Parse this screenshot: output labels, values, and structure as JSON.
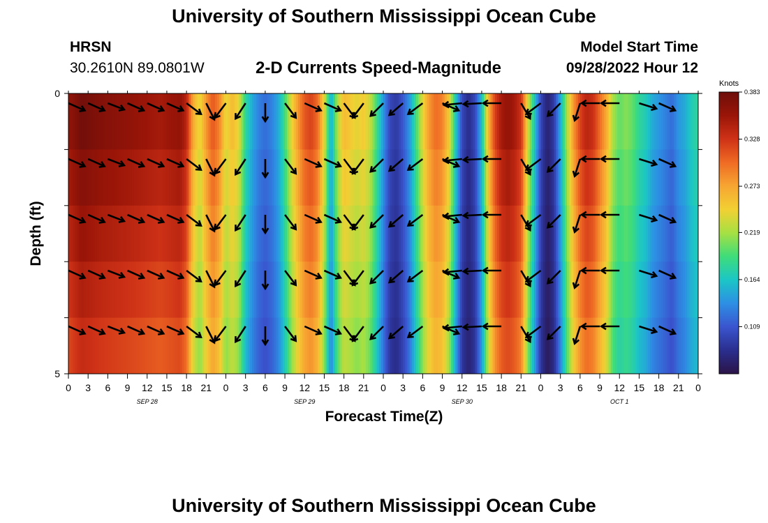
{
  "page": {
    "title": "University of Southern Mississippi Ocean Cube",
    "footer_title": "University of Southern Mississippi Ocean Cube",
    "station_name": "HRSN",
    "station_coords": "30.2610N  89.0801W",
    "plot_title": "2-D Currents Speed-Magnitude",
    "model_start_label": "Model Start Time",
    "model_start_value": "09/28/2022 Hour 12"
  },
  "chart_data": {
    "type": "heatmap",
    "title": "2-D Currents Speed-Magnitude",
    "xlabel": "Forecast Time(Z)",
    "ylabel": "Depth (ft)",
    "x_range_hours": [
      0,
      96
    ],
    "y_range_ft": [
      0,
      5
    ],
    "y_ticks": [
      "0",
      "5"
    ],
    "x_tick_labels": [
      "0",
      "3",
      "6",
      "9",
      "12",
      "15",
      "18",
      "21",
      "0",
      "3",
      "6",
      "9",
      "12",
      "15",
      "18",
      "21",
      "0",
      "3",
      "6",
      "9",
      "12",
      "15",
      "18",
      "21",
      "0",
      "3",
      "6",
      "9",
      "12",
      "15",
      "18",
      "21",
      "0"
    ],
    "date_labels": [
      {
        "label": "SEP 28",
        "hour": 12
      },
      {
        "label": "SEP 29",
        "hour": 36
      },
      {
        "label": "SEP 30",
        "hour": 60
      },
      {
        "label": "OCT 1",
        "hour": 84
      }
    ],
    "colorbar": {
      "unit": "Knots",
      "min": 0.054,
      "max": 0.383,
      "tick_labels": [
        "0.383",
        "0.328",
        "0.273",
        "0.219",
        "0.164",
        "0.109"
      ],
      "tick_values": [
        0.383,
        0.328,
        0.273,
        0.219,
        0.164,
        0.109
      ],
      "colors": [
        "#2b1448",
        "#2a2e8e",
        "#3a55cf",
        "#2d8fe4",
        "#1bc6c6",
        "#3fdc7a",
        "#a6e043",
        "#f2d033",
        "#f7a532",
        "#ef6b24",
        "#cf3217",
        "#9a1508",
        "#6e0e0a"
      ]
    },
    "speed_profile": [
      [
        0,
        0.36
      ],
      [
        2,
        0.38
      ],
      [
        5,
        0.37
      ],
      [
        10,
        0.36
      ],
      [
        14,
        0.35
      ],
      [
        17,
        0.36
      ],
      [
        18,
        0.34
      ],
      [
        19,
        0.27
      ],
      [
        20,
        0.24
      ],
      [
        21,
        0.28
      ],
      [
        22,
        0.31
      ],
      [
        23,
        0.29
      ],
      [
        24,
        0.24
      ],
      [
        25,
        0.26
      ],
      [
        26,
        0.24
      ],
      [
        27,
        0.18
      ],
      [
        28,
        0.15
      ],
      [
        29,
        0.13
      ],
      [
        30,
        0.12
      ],
      [
        31,
        0.13
      ],
      [
        32,
        0.15
      ],
      [
        33,
        0.19
      ],
      [
        34,
        0.24
      ],
      [
        35,
        0.28
      ],
      [
        36,
        0.31
      ],
      [
        37,
        0.32
      ],
      [
        38,
        0.3
      ],
      [
        39,
        0.24
      ],
      [
        40,
        0.15
      ],
      [
        41,
        0.22
      ],
      [
        42,
        0.26
      ],
      [
        43,
        0.25
      ],
      [
        44,
        0.24
      ],
      [
        45,
        0.25
      ],
      [
        46,
        0.23
      ],
      [
        47,
        0.19
      ],
      [
        48,
        0.14
      ],
      [
        49,
        0.1
      ],
      [
        50,
        0.09
      ],
      [
        51,
        0.11
      ],
      [
        52,
        0.14
      ],
      [
        53,
        0.19
      ],
      [
        54,
        0.24
      ],
      [
        55,
        0.28
      ],
      [
        56,
        0.3
      ],
      [
        57,
        0.29
      ],
      [
        58,
        0.25
      ],
      [
        59,
        0.17
      ],
      [
        60,
        0.1
      ],
      [
        61,
        0.08
      ],
      [
        62,
        0.1
      ],
      [
        63,
        0.16
      ],
      [
        64,
        0.26
      ],
      [
        65,
        0.32
      ],
      [
        66,
        0.35
      ],
      [
        67,
        0.36
      ],
      [
        68,
        0.35
      ],
      [
        69,
        0.33
      ],
      [
        70,
        0.24
      ],
      [
        71,
        0.17
      ],
      [
        72,
        0.1
      ],
      [
        73,
        0.07
      ],
      [
        74,
        0.09
      ],
      [
        75,
        0.15
      ],
      [
        76,
        0.22
      ],
      [
        77,
        0.28
      ],
      [
        78,
        0.32
      ],
      [
        79,
        0.34
      ],
      [
        80,
        0.33
      ],
      [
        81,
        0.3
      ],
      [
        82,
        0.27
      ],
      [
        83,
        0.22
      ],
      [
        84,
        0.2
      ],
      [
        85,
        0.21
      ],
      [
        86,
        0.2
      ],
      [
        87,
        0.18
      ],
      [
        88,
        0.17
      ],
      [
        89,
        0.15
      ],
      [
        90,
        0.14
      ],
      [
        91,
        0.13
      ],
      [
        92,
        0.12
      ],
      [
        93,
        0.14
      ],
      [
        94,
        0.15
      ],
      [
        95,
        0.17
      ],
      [
        96,
        0.18
      ]
    ],
    "vectors": [
      {
        "hour": 0,
        "dx": 0.9,
        "dy": 0.4
      },
      {
        "hour": 3,
        "dx": 0.9,
        "dy": 0.4
      },
      {
        "hour": 6,
        "dx": 0.9,
        "dy": 0.35
      },
      {
        "hour": 9,
        "dx": 0.9,
        "dy": 0.4
      },
      {
        "hour": 12,
        "dx": 0.9,
        "dy": 0.4
      },
      {
        "hour": 15,
        "dx": 0.9,
        "dy": 0.4
      },
      {
        "hour": 18,
        "dx": 0.8,
        "dy": 0.6
      },
      {
        "hour": 21,
        "dx": 0.45,
        "dy": 0.9
      },
      {
        "hour": 24,
        "dx": -0.6,
        "dy": 0.8
      },
      {
        "hour": 27,
        "dx": -0.55,
        "dy": 0.85
      },
      {
        "hour": 30,
        "dx": 0.0,
        "dy": 1.0
      },
      {
        "hour": 33,
        "dx": 0.6,
        "dy": 0.8
      },
      {
        "hour": 36,
        "dx": 0.9,
        "dy": 0.4
      },
      {
        "hour": 39,
        "dx": 0.9,
        "dy": 0.4
      },
      {
        "hour": 42,
        "dx": 0.6,
        "dy": 0.8
      },
      {
        "hour": 45,
        "dx": -0.6,
        "dy": 0.8
      },
      {
        "hour": 48,
        "dx": -0.7,
        "dy": 0.7
      },
      {
        "hour": 51,
        "dx": -0.75,
        "dy": 0.65
      },
      {
        "hour": 54,
        "dx": -0.8,
        "dy": 0.6
      },
      {
        "hour": 57,
        "dx": 0.9,
        "dy": 0.4
      },
      {
        "hour": 60,
        "dx": -0.99,
        "dy": 0.1
      },
      {
        "hour": 63,
        "dx": -1.0,
        "dy": 0.05
      },
      {
        "hour": 66,
        "dx": -1.0,
        "dy": 0.0
      },
      {
        "hour": 69,
        "dx": 0.5,
        "dy": 0.85
      },
      {
        "hour": 72,
        "dx": -0.8,
        "dy": 0.6
      },
      {
        "hour": 75,
        "dx": -0.7,
        "dy": 0.7
      },
      {
        "hour": 78,
        "dx": -0.3,
        "dy": 0.95
      },
      {
        "hour": 81,
        "dx": -1.0,
        "dy": 0.0
      },
      {
        "hour": 84,
        "dx": -1.0,
        "dy": 0.0
      },
      {
        "hour": 87,
        "dx": 0.95,
        "dy": 0.3
      },
      {
        "hour": 90,
        "dx": 0.9,
        "dy": 0.4
      }
    ]
  }
}
